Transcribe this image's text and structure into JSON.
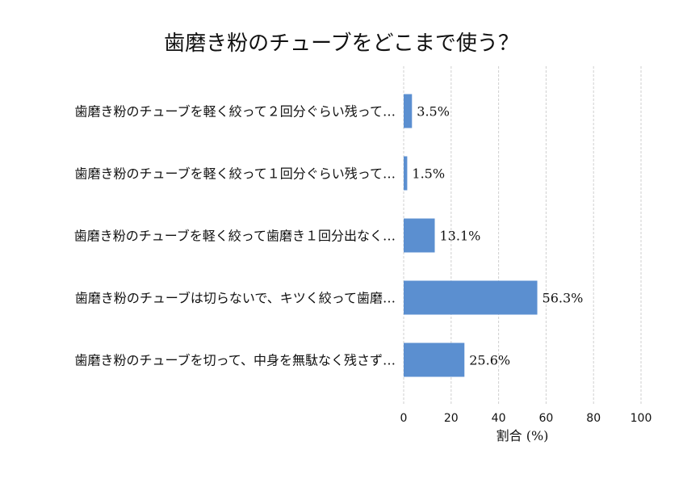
{
  "chart_data": {
    "type": "bar",
    "orientation": "horizontal",
    "title": "歯磨き粉のチューブをどこまで使う？",
    "xlabel": "割合 (%)",
    "ylabel": "",
    "xlim": [
      0,
      100
    ],
    "xticks": [
      "0",
      "20",
      "40",
      "60",
      "80",
      "100"
    ],
    "grid": "vertical-dashed",
    "bar_color": "#5b8fd0",
    "categories": [
      "歯磨き粉のチューブを軽く絞って２回分ぐらい残って…",
      "歯磨き粉のチューブを軽く絞って１回分ぐらい残って…",
      "歯磨き粉のチューブを軽く絞って歯磨き１回分出なく…",
      "歯磨き粉のチューブは切らないで、キツく絞って歯磨…",
      "歯磨き粉のチューブを切って、中身を無駄なく残さず…"
    ],
    "values": [
      3.5,
      1.5,
      13.1,
      56.3,
      25.6
    ],
    "value_labels": [
      "3.5%",
      "1.5%",
      "13.1%",
      "56.3%",
      "25.6%"
    ]
  }
}
